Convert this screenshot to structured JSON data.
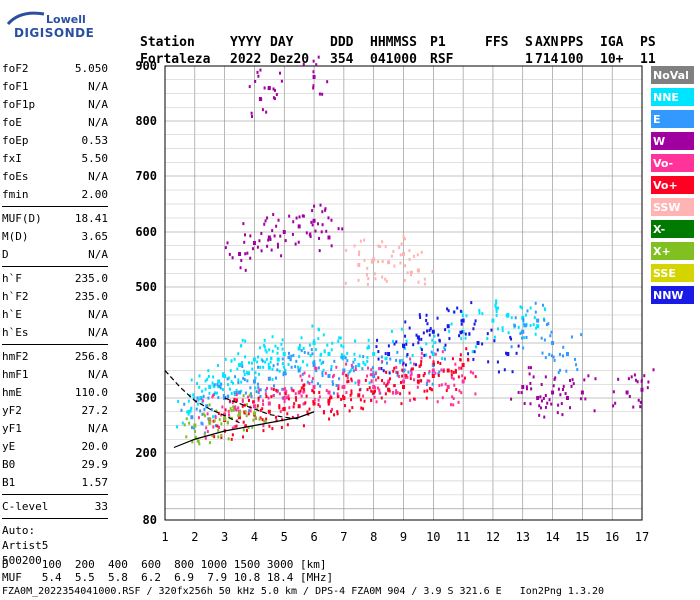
{
  "logo": {
    "line1": "Lowell",
    "line2": "DIGISONDE"
  },
  "header": {
    "labels": [
      "Station",
      "YYYY",
      "DAY",
      "DDD",
      "HHMMSS",
      "P1",
      "FFS",
      "S",
      "AXN",
      "PPS",
      "IGA",
      "PS"
    ],
    "values": [
      "Fortaleza",
      "2022",
      "Dez20",
      "354",
      "041000",
      "RSF",
      "1",
      "714",
      "100",
      "10+",
      "11"
    ]
  },
  "params": [
    {
      "group": [
        {
          "k": "foF2",
          "v": "5.050"
        },
        {
          "k": "foF1",
          "v": "N/A"
        },
        {
          "k": "foF1p",
          "v": "N/A"
        },
        {
          "k": "foE",
          "v": "N/A"
        },
        {
          "k": "foEp",
          "v": "0.53"
        },
        {
          "k": "fxI",
          "v": "5.50"
        },
        {
          "k": "foEs",
          "v": "N/A"
        },
        {
          "k": "fmin",
          "v": "2.00"
        }
      ]
    },
    {
      "group": [
        {
          "k": "MUF(D)",
          "v": "18.41"
        },
        {
          "k": "M(D)",
          "v": "3.65"
        },
        {
          "k": "D",
          "v": "N/A"
        }
      ]
    },
    {
      "group": [
        {
          "k": "h`F",
          "v": "235.0"
        },
        {
          "k": "h`F2",
          "v": "235.0"
        },
        {
          "k": "h`E",
          "v": "N/A"
        },
        {
          "k": "h`Es",
          "v": "N/A"
        }
      ]
    },
    {
      "group": [
        {
          "k": "hmF2",
          "v": "256.8"
        },
        {
          "k": "hmF1",
          "v": "N/A"
        },
        {
          "k": "hmE",
          "v": "110.0"
        },
        {
          "k": "yF2",
          "v": "27.2"
        },
        {
          "k": "yF1",
          "v": "N/A"
        },
        {
          "k": "yE",
          "v": "20.0"
        },
        {
          "k": "B0",
          "v": "29.9"
        },
        {
          "k": "B1",
          "v": "1.57"
        }
      ]
    },
    {
      "group": [
        {
          "k": "C-level",
          "v": "33"
        }
      ]
    }
  ],
  "auto": {
    "line1": "Auto:",
    "line2": "Artist5",
    "line3": "500200"
  },
  "footer": {
    "row1": "D     100  200  400  600  800 1000 1500 3000 [km]",
    "row2": "MUF   5.4  5.5  5.8  6.2  6.9  7.9 10.8 18.4 [MHz]",
    "row3": "FZA0M_2022354041000.RSF / 320fx256h 50 kHz 5.0 km / DPS-4 FZA0M 904 / 3.9 S 321.6 E   Ion2Png 1.3.20"
  },
  "legend": [
    {
      "label": "NoVal",
      "color": "#808080"
    },
    {
      "label": "NNE",
      "color": "#00e5ff"
    },
    {
      "label": "E",
      "color": "#3399ff"
    },
    {
      "label": "W",
      "color": "#a000a0"
    },
    {
      "label": "Vo-",
      "color": "#ff3399"
    },
    {
      "label": "Vo+",
      "color": "#ff0022"
    },
    {
      "label": "SSW",
      "color": "#ffb3b3"
    },
    {
      "label": "X-",
      "color": "#007a00"
    },
    {
      "label": "X+",
      "color": "#80c020"
    },
    {
      "label": "SSE",
      "color": "#d4d400"
    },
    {
      "label": "NNW",
      "color": "#1a1ae6"
    }
  ],
  "chart_data": {
    "type": "scatter",
    "xlabel": "",
    "ylabel": "",
    "xlim": [
      1,
      17
    ],
    "ylim": [
      80,
      900
    ],
    "x_ticks": [
      1,
      2,
      3,
      4,
      5,
      6,
      7,
      8,
      9,
      10,
      11,
      12,
      13,
      14,
      15,
      16,
      17
    ],
    "y_ticks": [
      80,
      200,
      300,
      400,
      500,
      600,
      700,
      800,
      900
    ],
    "grid": true,
    "legend_position": "right",
    "series": [
      {
        "name": "NNE",
        "points": [
          [
            1.8,
            275
          ],
          [
            2.2,
            300
          ],
          [
            2.5,
            320
          ],
          [
            3.0,
            340
          ],
          [
            3.5,
            360
          ],
          [
            4.0,
            370
          ],
          [
            4.5,
            355
          ],
          [
            5.0,
            380
          ],
          [
            5.5,
            390
          ],
          [
            6.0,
            400
          ],
          [
            6.5,
            380
          ],
          [
            7.0,
            375
          ],
          [
            7.5,
            360
          ],
          [
            8.0,
            380
          ],
          [
            9.0,
            395
          ],
          [
            10.0,
            380
          ],
          [
            11.0,
            420
          ],
          [
            12.0,
            440
          ],
          [
            12.5,
            450
          ],
          [
            13.0,
            445
          ],
          [
            13.5,
            430
          ],
          [
            2.8,
            330
          ],
          [
            3.8,
            345
          ],
          [
            4.8,
            370
          ]
        ]
      },
      {
        "name": "E",
        "points": [
          [
            1.9,
            265
          ],
          [
            2.4,
            285
          ],
          [
            3.0,
            300
          ],
          [
            3.5,
            310
          ],
          [
            4.0,
            330
          ],
          [
            4.5,
            335
          ],
          [
            5.0,
            345
          ],
          [
            5.5,
            350
          ],
          [
            6.0,
            360
          ],
          [
            6.5,
            340
          ],
          [
            7.0,
            350
          ],
          [
            8.0,
            340
          ],
          [
            9.0,
            350
          ],
          [
            10.0,
            360
          ],
          [
            13.0,
            420
          ],
          [
            13.5,
            440
          ],
          [
            14.0,
            400
          ],
          [
            14.5,
            380
          ]
        ]
      },
      {
        "name": "W",
        "points": [
          [
            3.5,
            560
          ],
          [
            4.0,
            580
          ],
          [
            4.5,
            590
          ],
          [
            5.0,
            600
          ],
          [
            5.5,
            610
          ],
          [
            6.0,
            620
          ],
          [
            6.5,
            590
          ],
          [
            4.2,
            840
          ],
          [
            4.5,
            860
          ],
          [
            6.0,
            880
          ],
          [
            13.0,
            320
          ],
          [
            13.5,
            300
          ],
          [
            14.0,
            310
          ],
          [
            14.5,
            300
          ],
          [
            15.0,
            310
          ],
          [
            16.5,
            310
          ],
          [
            17.0,
            315
          ]
        ]
      },
      {
        "name": "Vo-",
        "points": [
          [
            2.5,
            260
          ],
          [
            3.0,
            270
          ],
          [
            3.5,
            275
          ],
          [
            4.0,
            285
          ],
          [
            4.5,
            290
          ],
          [
            5.0,
            300
          ],
          [
            5.5,
            310
          ],
          [
            6.0,
            320
          ],
          [
            6.5,
            310
          ],
          [
            7.0,
            320
          ],
          [
            7.5,
            330
          ],
          [
            8.0,
            320
          ],
          [
            8.5,
            330
          ],
          [
            9.0,
            330
          ],
          [
            9.5,
            340
          ],
          [
            10.0,
            350
          ],
          [
            10.5,
            320
          ],
          [
            11.0,
            330
          ]
        ]
      },
      {
        "name": "Vo+",
        "points": [
          [
            3.0,
            260
          ],
          [
            3.5,
            265
          ],
          [
            4.0,
            270
          ],
          [
            4.5,
            275
          ],
          [
            5.0,
            280
          ],
          [
            5.5,
            285
          ],
          [
            6.0,
            290
          ],
          [
            6.5,
            295
          ],
          [
            7.0,
            300
          ],
          [
            7.5,
            305
          ],
          [
            8.0,
            310
          ],
          [
            8.5,
            315
          ],
          [
            9.0,
            320
          ],
          [
            9.5,
            330
          ],
          [
            10.0,
            340
          ],
          [
            10.5,
            350
          ],
          [
            11.0,
            360
          ]
        ]
      },
      {
        "name": "SSW",
        "points": [
          [
            7.5,
            540
          ],
          [
            8.0,
            550
          ],
          [
            8.5,
            545
          ],
          [
            9.0,
            560
          ],
          [
            9.5,
            530
          ]
        ]
      },
      {
        "name": "X+",
        "points": [
          [
            2.0,
            250
          ],
          [
            2.5,
            255
          ],
          [
            3.0,
            262
          ],
          [
            3.5,
            270
          ],
          [
            4.0,
            272
          ]
        ]
      },
      {
        "name": "NNW",
        "points": [
          [
            8.5,
            380
          ],
          [
            9.0,
            395
          ],
          [
            9.5,
            410
          ],
          [
            10.0,
            420
          ],
          [
            10.5,
            430
          ],
          [
            11.0,
            440
          ],
          [
            11.5,
            400
          ],
          [
            12.5,
            380
          ]
        ]
      }
    ],
    "profile_curve": {
      "name": "profile",
      "x": [
        1.3,
        2.0,
        3.0,
        4.0,
        4.5,
        5.0,
        5.5,
        6.0
      ],
      "y": [
        210,
        225,
        240,
        250,
        255,
        260,
        265,
        275
      ]
    },
    "muf_curve_upper": {
      "x": [
        1.0,
        1.5,
        2.0,
        2.5,
        3.0,
        3.5
      ],
      "y": [
        350,
        320,
        295,
        280,
        268,
        255
      ]
    },
    "muf_curve_lower": {
      "x": [
        3.0,
        3.5,
        4.0,
        4.5,
        5.0,
        5.5
      ],
      "y": [
        300,
        290,
        280,
        270,
        265,
        262
      ]
    }
  }
}
